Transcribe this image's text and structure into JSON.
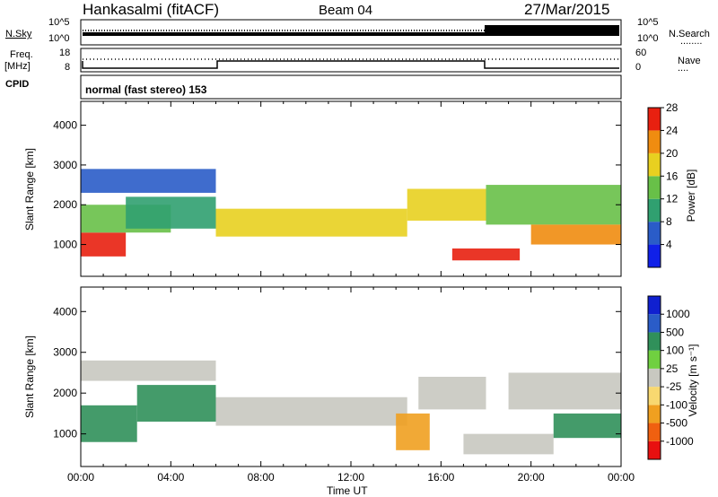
{
  "header": {
    "station": "Hankasalmi (fitACF)",
    "beam": "Beam 04",
    "date": "27/Mar/2015"
  },
  "strip_labels": {
    "nsky": "N.Sky",
    "nsearch": "N.Search",
    "nsearch_dots": "........",
    "freq": "Freq.",
    "mhz": "[MHz]",
    "nave": "Nave",
    "nave_dots": "....",
    "cpid": "CPID",
    "cpid_value": "normal (fast stereo) 153",
    "noise_ticks": [
      "10^5",
      "10^0"
    ],
    "freq_ticks": [
      "18",
      "8"
    ],
    "nave_ticks": [
      "60",
      "0"
    ]
  },
  "chart_data": [
    {
      "type": "heatmap",
      "panel": "power",
      "ylabel": "Slant Range [km]",
      "yticks": [
        1000,
        2000,
        3000,
        4000
      ],
      "ylim": [
        200,
        4600
      ],
      "xlim": [
        0,
        24
      ],
      "colorbar_label": "Power [dB]",
      "colorbar_ticks": [
        4,
        8,
        12,
        16,
        20,
        24,
        28
      ],
      "colorbar_colors": [
        "#1020e8",
        "#2a5cc8",
        "#30a070",
        "#68c048",
        "#e8d020",
        "#f08c10",
        "#e82010"
      ],
      "bands": [
        {
          "t0": 0.0,
          "t1": 2.0,
          "r0": 700,
          "r1": 1300,
          "level": 6
        },
        {
          "t0": 0.0,
          "t1": 4.0,
          "r0": 1300,
          "r1": 2000,
          "level": 3
        },
        {
          "t0": 0.0,
          "t1": 6.0,
          "r0": 2300,
          "r1": 2900,
          "level": 1
        },
        {
          "t0": 2.0,
          "t1": 6.0,
          "r0": 1400,
          "r1": 2200,
          "level": 2
        },
        {
          "t0": 6.0,
          "t1": 14.5,
          "r0": 1200,
          "r1": 1900,
          "level": 4
        },
        {
          "t0": 14.5,
          "t1": 18.0,
          "r0": 1600,
          "r1": 2400,
          "level": 4
        },
        {
          "t0": 16.5,
          "t1": 19.5,
          "r0": 600,
          "r1": 900,
          "level": 6
        },
        {
          "t0": 18.0,
          "t1": 24.0,
          "r0": 1500,
          "r1": 2500,
          "level": 3
        },
        {
          "t0": 20.0,
          "t1": 24.0,
          "r0": 1000,
          "r1": 1500,
          "level": 5
        }
      ]
    },
    {
      "type": "heatmap",
      "panel": "velocity",
      "ylabel": "Slant Range [km]",
      "yticks": [
        1000,
        2000,
        3000,
        4000
      ],
      "ylim": [
        200,
        4600
      ],
      "xlim": [
        0,
        24
      ],
      "xticks": [
        "00:00",
        "04:00",
        "08:00",
        "12:00",
        "16:00",
        "20:00",
        "00:00"
      ],
      "xlabel": "Time UT",
      "colorbar_label": "Velocity [m s⁻¹]",
      "colorbar_ticks": [
        "-1000",
        "-500",
        "-100",
        "-25",
        "25",
        "100",
        "500",
        "1000"
      ],
      "colorbar_colors": [
        "#e81010",
        "#f06010",
        "#f0a020",
        "#f8d870",
        "#c8c8c0",
        "#70d040",
        "#30905a",
        "#2a5cc8",
        "#1020d0"
      ],
      "bands": [
        {
          "t0": 0.0,
          "t1": 2.5,
          "r0": 800,
          "r1": 1700,
          "level": 6
        },
        {
          "t0": 0.0,
          "t1": 6.0,
          "r0": 2300,
          "r1": 2800,
          "level": 4
        },
        {
          "t0": 2.5,
          "t1": 6.0,
          "r0": 1300,
          "r1": 2200,
          "level": 6
        },
        {
          "t0": 6.0,
          "t1": 14.5,
          "r0": 1200,
          "r1": 1900,
          "level": 4
        },
        {
          "t0": 14.0,
          "t1": 15.5,
          "r0": 600,
          "r1": 1500,
          "level": 2
        },
        {
          "t0": 15.0,
          "t1": 18.0,
          "r0": 1600,
          "r1": 2400,
          "level": 4
        },
        {
          "t0": 17.0,
          "t1": 21.0,
          "r0": 500,
          "r1": 1000,
          "level": 4
        },
        {
          "t0": 19.0,
          "t1": 24.0,
          "r0": 1600,
          "r1": 2500,
          "level": 4
        },
        {
          "t0": 21.0,
          "t1": 24.0,
          "r0": 900,
          "r1": 1500,
          "level": 6
        }
      ]
    }
  ]
}
